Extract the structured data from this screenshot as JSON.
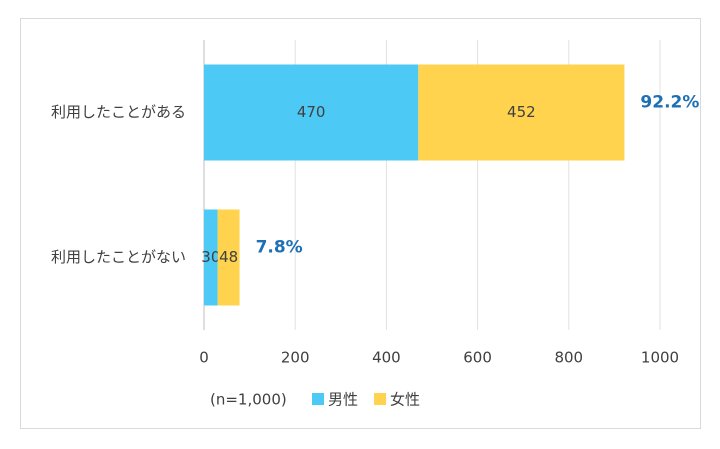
{
  "chart_data": {
    "type": "bar",
    "orientation": "horizontal",
    "stacked": true,
    "categories": [
      "利用したことがある",
      "利用したことがない"
    ],
    "series": [
      {
        "name": "男性",
        "color": "#4dc9f6",
        "values": [
          470,
          30
        ]
      },
      {
        "name": "女性",
        "color": "#ffd34e",
        "values": [
          452,
          48
        ]
      }
    ],
    "annotations": [
      "92.2%",
      "7.8%"
    ],
    "note": "(n=1,000)",
    "xlim": [
      0,
      1000
    ],
    "xticks": [
      0,
      200,
      400,
      600,
      800,
      1000
    ],
    "grid": true,
    "legend": "bottom"
  }
}
